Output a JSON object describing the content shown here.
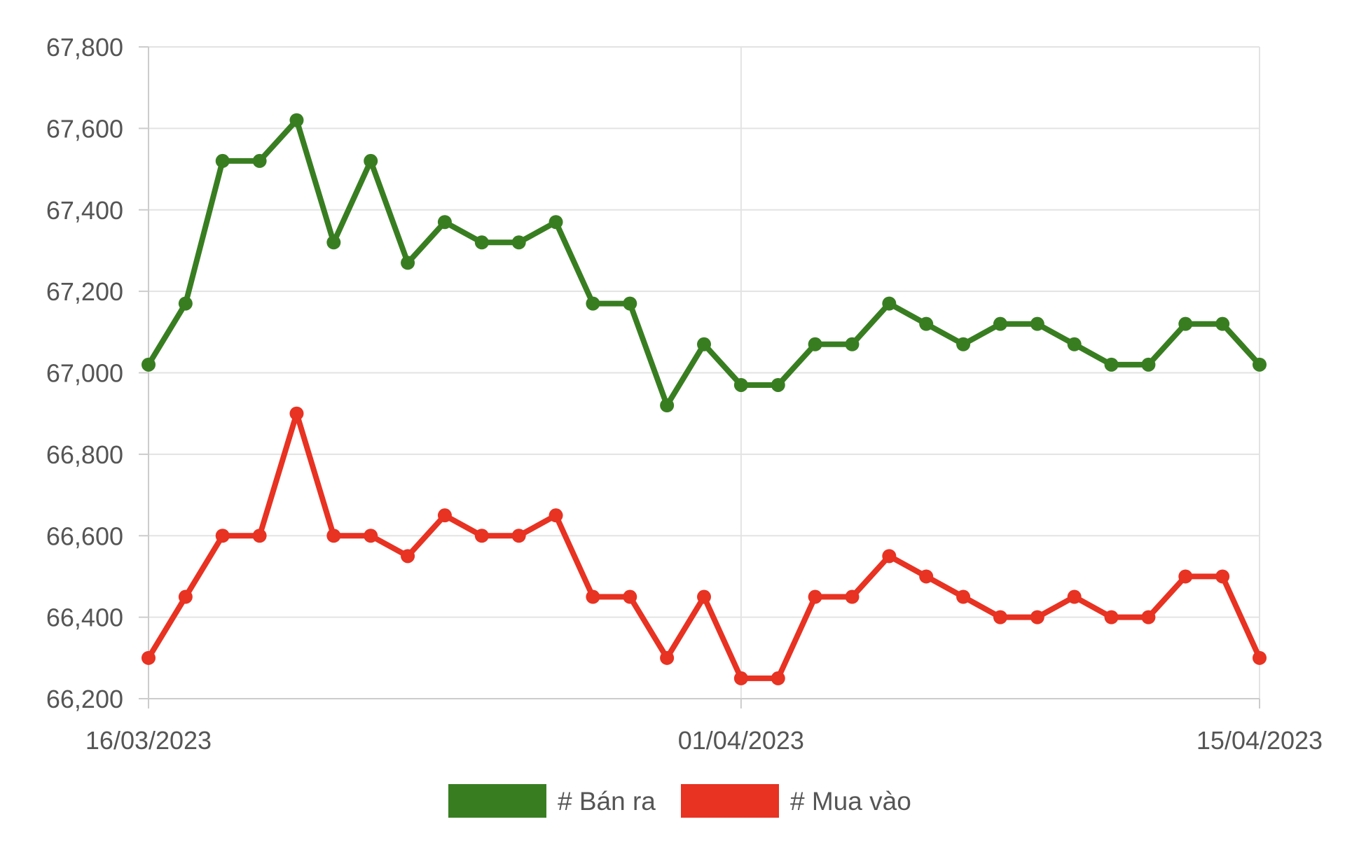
{
  "chart_data": {
    "type": "line",
    "title": "",
    "xlabel": "",
    "ylabel": "",
    "x": [
      "16/03/2023",
      "17/03/2023",
      "18/03/2023",
      "19/03/2023",
      "20/03/2023",
      "21/03/2023",
      "22/03/2023",
      "23/03/2023",
      "24/03/2023",
      "25/03/2023",
      "26/03/2023",
      "27/03/2023",
      "28/03/2023",
      "29/03/2023",
      "30/03/2023",
      "31/03/2023",
      "01/04/2023",
      "02/04/2023",
      "03/04/2023",
      "04/04/2023",
      "05/04/2023",
      "06/04/2023",
      "07/04/2023",
      "08/04/2023",
      "09/04/2023",
      "10/04/2023",
      "11/04/2023",
      "12/04/2023",
      "13/04/2023",
      "14/04/2023",
      "15/04/2023"
    ],
    "x_tick_labels": [
      "16/03/2023",
      "01/04/2023",
      "15/04/2023"
    ],
    "ylim": [
      66200,
      67800
    ],
    "y_ticks": [
      66200,
      66400,
      66600,
      66800,
      67000,
      67200,
      67400,
      67600,
      67800
    ],
    "y_tick_labels": [
      "66,200",
      "66,400",
      "66,600",
      "66,800",
      "67,000",
      "67,200",
      "67,400",
      "67,600",
      "67,800"
    ],
    "grid": true,
    "legend_position": "bottom",
    "series": [
      {
        "name": "# Bán ra",
        "color": "#387e21",
        "values": [
          67020,
          67170,
          67520,
          67520,
          67620,
          67320,
          67520,
          67270,
          67370,
          67320,
          67320,
          67370,
          67170,
          67170,
          66920,
          67070,
          66970,
          66970,
          67070,
          67070,
          67170,
          67120,
          67070,
          67120,
          67120,
          67070,
          67020,
          67020,
          67120,
          67120,
          67020
        ]
      },
      {
        "name": "# Mua vào",
        "color": "#e83222",
        "values": [
          66300,
          66450,
          66600,
          66600,
          66900,
          66600,
          66600,
          66550,
          66650,
          66600,
          66600,
          66650,
          66450,
          66450,
          66300,
          66450,
          66250,
          66250,
          66450,
          66450,
          66550,
          66500,
          66450,
          66400,
          66400,
          66450,
          66400,
          66400,
          66500,
          66500,
          66300
        ]
      }
    ]
  }
}
